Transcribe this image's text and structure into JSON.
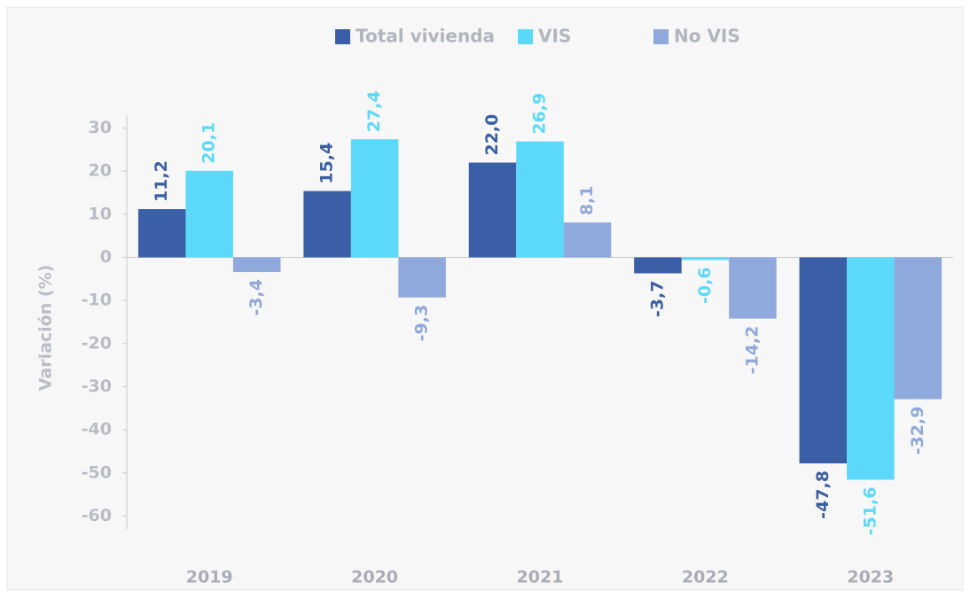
{
  "chart_data": {
    "type": "bar",
    "y_label": "Variación (%)",
    "categories": [
      "2019",
      "2020",
      "2021",
      "2022",
      "2023"
    ],
    "series": [
      {
        "name": "Total vivienda",
        "color": "#3a5fa6",
        "values": [
          11.2,
          15.4,
          22.0,
          -3.7,
          -47.8
        ],
        "value_labels": [
          "11,2",
          "15,4",
          "22,0",
          "-3,7",
          "-47,8"
        ]
      },
      {
        "name": "VIS",
        "color": "#5cd9fa",
        "values": [
          20.1,
          27.4,
          26.9,
          -0.6,
          -51.6
        ],
        "value_labels": [
          "20,1",
          "27,4",
          "26,9",
          "-0,6",
          "-51,6"
        ]
      },
      {
        "name": "No VIS",
        "color": "#8fa9dd",
        "values": [
          -3.4,
          -9.3,
          8.1,
          -14.2,
          -32.9
        ],
        "value_labels": [
          "-3,4",
          "-9,3",
          "8,1",
          "-14,2",
          "-32,9"
        ]
      }
    ],
    "ylim": [
      -63,
      33
    ],
    "yticks": [
      30,
      20,
      10,
      0,
      -10,
      -20,
      -30,
      -40,
      -50,
      -60
    ],
    "legend": "top"
  }
}
